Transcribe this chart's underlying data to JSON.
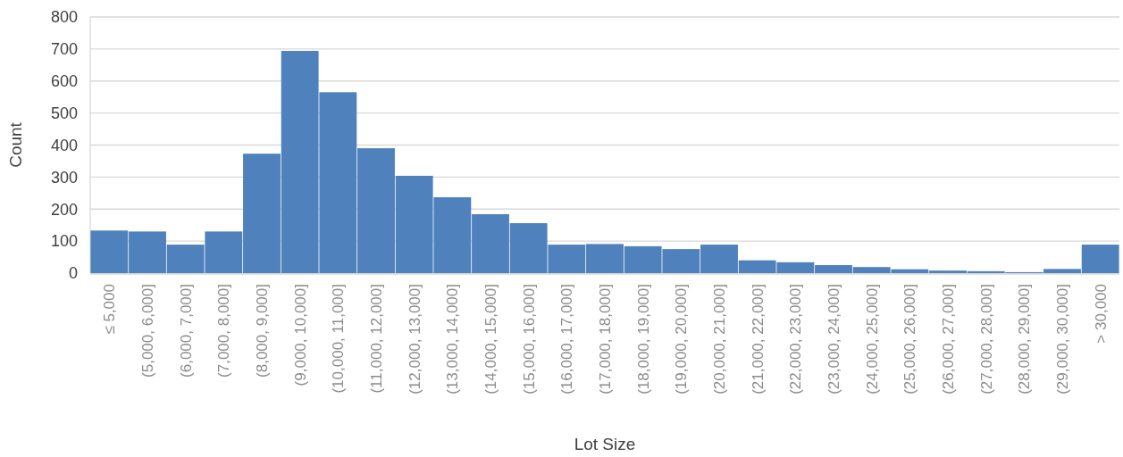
{
  "chart_data": {
    "type": "bar",
    "xlabel": "Lot Size",
    "ylabel": "Count",
    "categories": [
      "≤ 5,000",
      "(5,000, 6,000]",
      "(6,000, 7,000]",
      "(7,000, 8,000]",
      "(8,000, 9,000]",
      "(9,000, 10,000]",
      "(10,000, 11,000]",
      "(11,000, 12,000]",
      "(12,000, 13,000]",
      "(13,000, 14,000]",
      "(14,000, 15,000]",
      "(15,000, 16,000]",
      "(16,000, 17,000]",
      "(17,000, 18,000]",
      "(18,000, 19,000]",
      "(19,000, 20,000]",
      "(20,000, 21,000]",
      "(21,000, 22,000]",
      "(22,000, 23,000]",
      "(23,000, 24,000]",
      "(24,000, 25,000]",
      "(25,000, 26,000]",
      "(26,000, 27,000]",
      "(27,000, 28,000]",
      "(28,000, 29,000]",
      "(29,000, 30,000]",
      "> 30,000"
    ],
    "values": [
      133,
      130,
      89,
      130,
      373,
      694,
      565,
      390,
      304,
      237,
      184,
      156,
      89,
      91,
      84,
      75,
      89,
      40,
      34,
      25,
      19,
      12,
      8,
      6,
      3,
      13,
      89
    ],
    "color": "#4f81bd",
    "ylim": [
      0,
      800
    ],
    "yticks": [
      0,
      100,
      200,
      300,
      400,
      500,
      600,
      700,
      800
    ],
    "grid": "y"
  }
}
